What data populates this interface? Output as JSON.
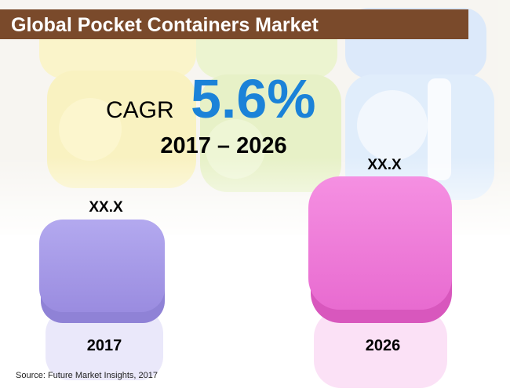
{
  "header": {
    "title": "Global Pocket Containers Market"
  },
  "cagr": {
    "label": "CAGR",
    "value": "5.6%",
    "period": "2017 – 2026"
  },
  "items": [
    {
      "value_label": "XX.X",
      "year": "2017"
    },
    {
      "value_label": "XX.X",
      "year": "2026"
    }
  ],
  "footer": {
    "source": "Source: Future Market Insights, 2017"
  }
}
